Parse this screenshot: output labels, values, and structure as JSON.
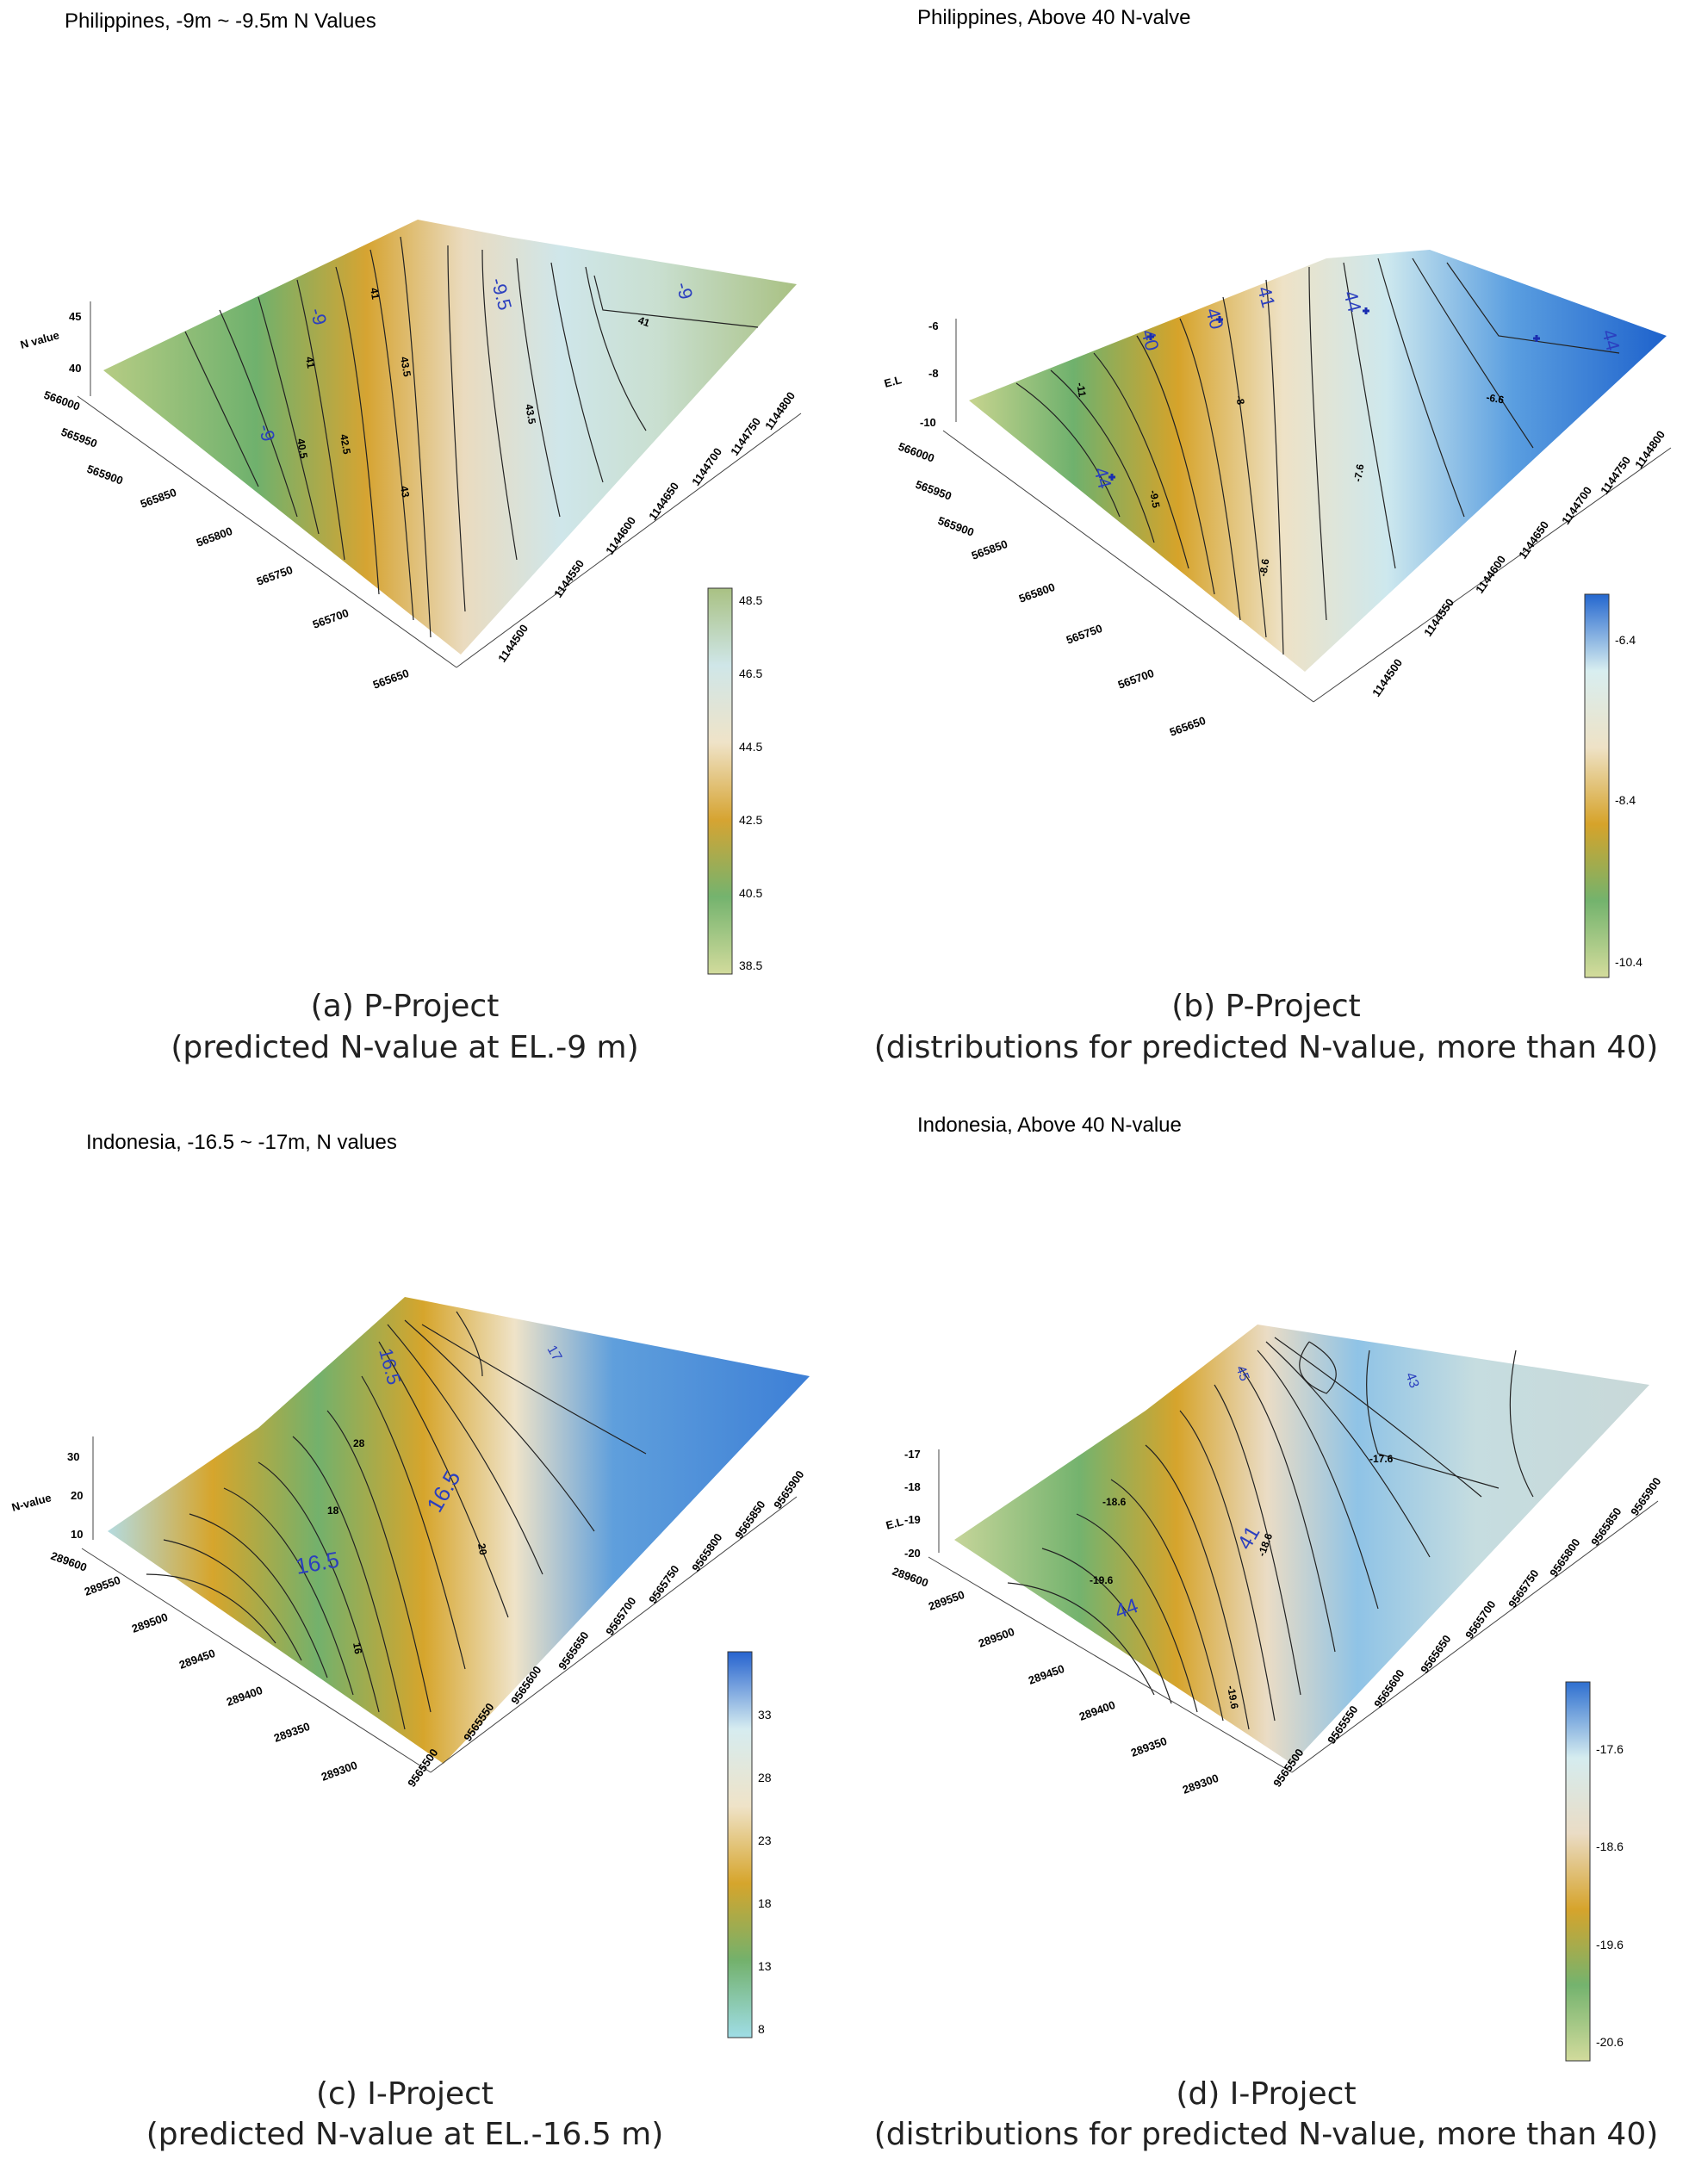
{
  "chart_data": [
    {
      "type": "surface",
      "title": "Philippines, -9m ~ -9.5m N Values",
      "caption_line1": "(a) P-Project",
      "caption_line2": "(predicted N-value at EL.-9 m)",
      "zlabel": "N value",
      "z_ticks": [
        "45",
        "40"
      ],
      "y_ticks": [
        "566000",
        "565950",
        "565900",
        "565850",
        "565800",
        "565750",
        "565700",
        "565650"
      ],
      "x_ticks": [
        "1144500",
        "1144550",
        "1144600",
        "1144650",
        "1144700",
        "1144750",
        "1144800"
      ],
      "colorbar_ticks": [
        "48.5",
        "46.5",
        "44.5",
        "42.5",
        "40.5",
        "38.5"
      ],
      "colorbar_colors": [
        "#a9c183",
        "#cfe0d8",
        "#e8dcc3",
        "#d6a432",
        "#74b36e",
        "#cfd99a"
      ],
      "contour_labels": [
        "41",
        "42.5",
        "40.5",
        "43",
        "43.5",
        "41",
        "43.5",
        "41"
      ],
      "markers": [
        "-9",
        "-9",
        "-9.5",
        "-9"
      ]
    },
    {
      "type": "surface",
      "title": "Philippines, Above 40 N-valve",
      "caption_line1": "(b) P-Project",
      "caption_line2": "(distributions for predicted N-value, more than 40)",
      "zlabel": "E.L",
      "z_ticks": [
        "-6",
        "-8",
        "-10"
      ],
      "y_ticks": [
        "566000",
        "565950",
        "565900",
        "565850",
        "565800",
        "565750",
        "565700",
        "565650"
      ],
      "x_ticks": [
        "1144500",
        "1144550",
        "1144600",
        "1144650",
        "1144700",
        "1144750",
        "1144800"
      ],
      "colorbar_ticks": [
        "-6.4",
        "-8.4",
        "-10.4"
      ],
      "colorbar_colors": [
        "#2467cf",
        "#d8eef0",
        "#eee2c6",
        "#d6a32a",
        "#73b36d",
        "#d4dc9c"
      ],
      "contour_labels": [
        "-11",
        "-9.5",
        "-7.6",
        "-8.6",
        "-6.6",
        "-8"
      ],
      "markers": [
        "40",
        "40",
        "44",
        "44",
        "41",
        "44"
      ]
    },
    {
      "type": "surface",
      "title": "Indonesia, -16.5 ~ -17m, N values",
      "caption_line1": "(c) I-Project",
      "caption_line2": "(predicted N-value at EL.-16.5 m)",
      "zlabel": "N-value",
      "z_ticks": [
        "30",
        "20",
        "10"
      ],
      "y_ticks": [
        "289600",
        "289550",
        "289500",
        "289450",
        "289400",
        "289350",
        "289300"
      ],
      "x_ticks": [
        "9565500",
        "9565550",
        "9565600",
        "9565650",
        "9565700",
        "9565750",
        "9565800",
        "9565850",
        "9565900"
      ],
      "colorbar_ticks": [
        "33",
        "28",
        "23",
        "18",
        "13",
        "8"
      ],
      "colorbar_colors": [
        "#2663cf",
        "#d6ecf0",
        "#efe3c8",
        "#d6a52c",
        "#73b16c",
        "#9fdde6"
      ],
      "contour_labels": [
        "28",
        "18",
        "20",
        "16"
      ],
      "markers": [
        "16.5",
        "16.5",
        "16.5",
        "17"
      ]
    },
    {
      "type": "surface",
      "title": "Indonesia, Above 40 N-value",
      "caption_line1": "(d) I-Project",
      "caption_line2": "(distributions for predicted N-value, more than 40)",
      "zlabel": "E.L",
      "z_ticks": [
        "-17",
        "-18",
        "-19",
        "-20"
      ],
      "y_ticks": [
        "289600",
        "289550",
        "289500",
        "289450",
        "289400",
        "289350",
        "289300"
      ],
      "x_ticks": [
        "9565500",
        "9565550",
        "9565600",
        "9565650",
        "9565700",
        "9565750",
        "9565800",
        "9565850",
        "9565900"
      ],
      "colorbar_ticks": [
        "-17.6",
        "-18.6",
        "-19.6",
        "-20.6"
      ],
      "colorbar_colors": [
        "#2e6fd0",
        "#d5ecef",
        "#eadcc5",
        "#d6a42c",
        "#74b36e",
        "#d2db9c"
      ],
      "contour_labels": [
        "-18.6",
        "-19.6",
        "-17.6",
        "-18.6",
        "-19.6"
      ],
      "markers": [
        "44",
        "41",
        "45",
        "43"
      ]
    }
  ]
}
